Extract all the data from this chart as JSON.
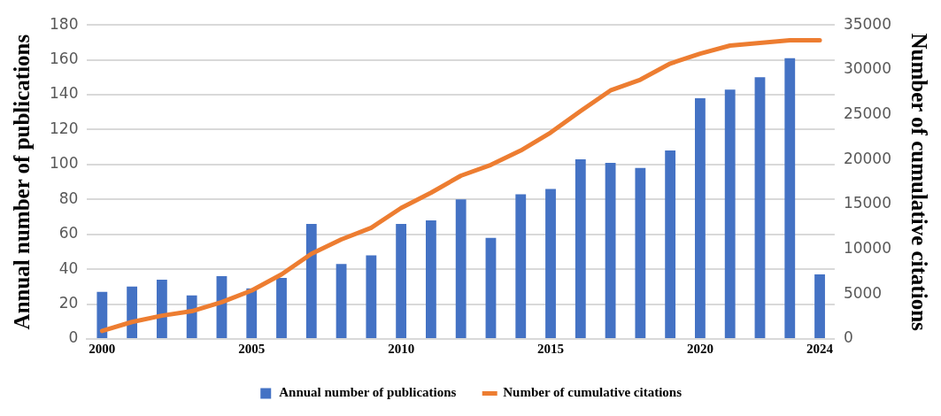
{
  "chart_data": {
    "type": "bar",
    "xlabel": null,
    "ylabel": "Annual number of publications",
    "y2label": "Number of cumulative citations",
    "categories": [
      "2000",
      null,
      null,
      null,
      null,
      "2005",
      null,
      null,
      null,
      null,
      "2010",
      null,
      null,
      null,
      null,
      "2015",
      null,
      null,
      null,
      null,
      "2020",
      null,
      null,
      null,
      "2024"
    ],
    "series": [
      {
        "name": "Annual number of publications",
        "color": "#4472c4",
        "values": [
          27,
          30,
          34,
          25,
          36,
          29,
          35,
          66,
          43,
          48,
          66,
          68,
          80,
          58,
          83,
          86,
          103,
          101,
          98,
          108,
          138,
          143,
          150,
          161,
          37
        ]
      },
      {
        "name": "Number of cumulative citations",
        "type": "line",
        "axis": "y2",
        "color": "#ed7d31",
        "marker": "none",
        "values": [
          900,
          1900,
          2600,
          3100,
          4100,
          5400,
          7200,
          9500,
          11100,
          12400,
          14600,
          16300,
          18200,
          19400,
          21000,
          23000,
          25400,
          27700,
          28900,
          30700,
          31800,
          32700,
          33000,
          33300,
          33300
        ]
      }
    ],
    "ylim": [
      0,
      180
    ],
    "yticks": [
      0,
      20,
      40,
      60,
      80,
      100,
      120,
      140,
      160,
      180
    ],
    "y2lim": [
      0,
      35000
    ],
    "y2ticks": [
      0,
      5000,
      10000,
      15000,
      20000,
      25000,
      30000,
      35000
    ],
    "grid": "y",
    "legend": "bottom"
  }
}
